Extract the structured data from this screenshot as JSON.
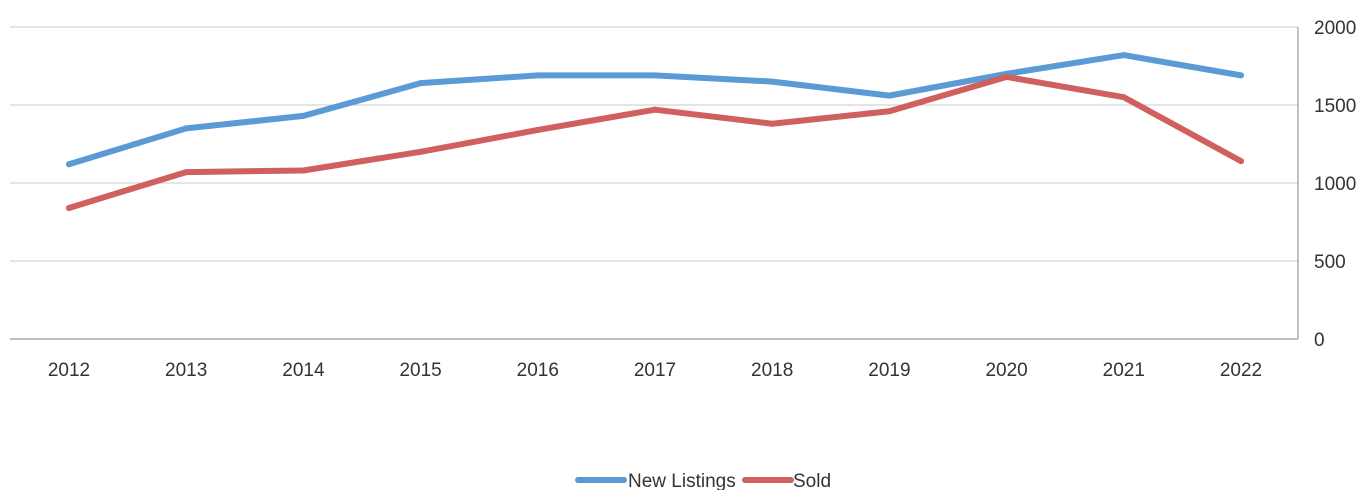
{
  "chart_data": {
    "type": "line",
    "title": "",
    "xlabel": "",
    "ylabel": "",
    "categories": [
      "2012",
      "2013",
      "2014",
      "2015",
      "2016",
      "2017",
      "2018",
      "2019",
      "2020",
      "2021",
      "2022"
    ],
    "series": [
      {
        "name": "New Listings",
        "color": "#5b9bd5",
        "values": [
          1120,
          1350,
          1430,
          1640,
          1690,
          1690,
          1650,
          1560,
          1700,
          1820,
          1690
        ]
      },
      {
        "name": "Sold",
        "color": "#d0605e",
        "values": [
          840,
          1070,
          1080,
          1200,
          1340,
          1470,
          1380,
          1460,
          1680,
          1550,
          1140
        ]
      }
    ],
    "ylim": [
      0,
      2000
    ],
    "yticks": [
      0,
      500,
      1000,
      1500,
      2000
    ],
    "y_axis_side": "right",
    "grid": true,
    "legend_position": "bottom-center"
  }
}
